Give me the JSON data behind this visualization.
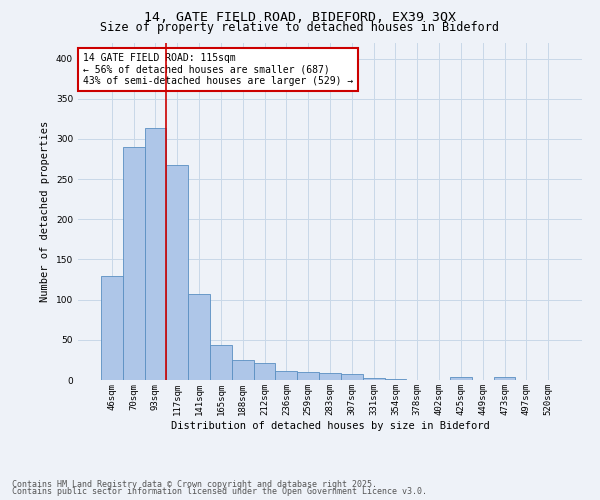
{
  "title1": "14, GATE FIELD ROAD, BIDEFORD, EX39 3QX",
  "title2": "Size of property relative to detached houses in Bideford",
  "xlabel": "Distribution of detached houses by size in Bideford",
  "ylabel": "Number of detached properties",
  "categories": [
    "46sqm",
    "70sqm",
    "93sqm",
    "117sqm",
    "141sqm",
    "165sqm",
    "188sqm",
    "212sqm",
    "236sqm",
    "259sqm",
    "283sqm",
    "307sqm",
    "331sqm",
    "354sqm",
    "378sqm",
    "402sqm",
    "425sqm",
    "449sqm",
    "473sqm",
    "497sqm",
    "520sqm"
  ],
  "values": [
    130,
    290,
    313,
    268,
    107,
    43,
    25,
    21,
    11,
    10,
    9,
    7,
    2,
    1,
    0,
    0,
    4,
    0,
    4,
    0,
    0
  ],
  "bar_color": "#aec6e8",
  "bar_edge_color": "#5a8fc2",
  "vline_color": "#cc0000",
  "annotation_text": "14 GATE FIELD ROAD: 115sqm\n← 56% of detached houses are smaller (687)\n43% of semi-detached houses are larger (529) →",
  "annotation_box_color": "#ffffff",
  "annotation_box_edge": "#cc0000",
  "grid_color": "#c8d8e8",
  "background_color": "#eef2f8",
  "footer1": "Contains HM Land Registry data © Crown copyright and database right 2025.",
  "footer2": "Contains public sector information licensed under the Open Government Licence v3.0.",
  "ylim": [
    0,
    420
  ],
  "title_fontsize": 9.5,
  "subtitle_fontsize": 8.5,
  "axis_label_fontsize": 7.5,
  "tick_fontsize": 6.5,
  "annotation_fontsize": 7,
  "footer_fontsize": 6
}
